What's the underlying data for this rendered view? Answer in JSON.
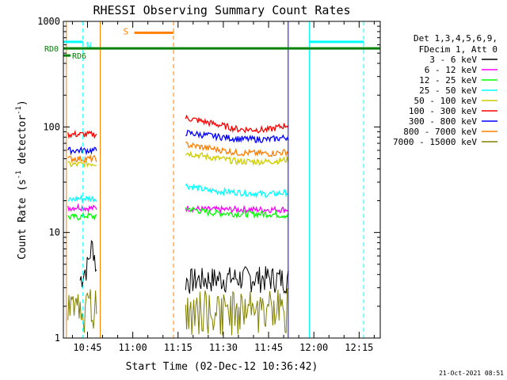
{
  "chart_data": {
    "type": "line",
    "title": "RHESSI Observing Summary Count Rates",
    "xlabel": "Start Time (02-Dec-12 10:36:42)",
    "ylabel": "Count Rate (s⁻¹ detector⁻¹)",
    "ylabel_main": "Count Rate (s",
    "ylabel_sup1": "-1",
    "ylabel_mid": " detector",
    "ylabel_sup2": "-1",
    "ylabel_end": ")",
    "yscale": "log",
    "ylim": [
      1,
      1000
    ],
    "xlim_minutes": [
      -8,
      97
    ],
    "x_tick_labels": [
      {
        "m": 0,
        "label": "10:45"
      },
      {
        "m": 15,
        "label": "11:00"
      },
      {
        "m": 30,
        "label": "11:15"
      },
      {
        "m": 45,
        "label": "11:30"
      },
      {
        "m": 60,
        "label": "11:45"
      },
      {
        "m": 75,
        "label": "12:00"
      },
      {
        "m": 90,
        "label": "12:15"
      }
    ],
    "y_tick_labels": [
      {
        "v": 1,
        "label": "1"
      },
      {
        "v": 10,
        "label": "10"
      },
      {
        "v": 100,
        "label": "100"
      },
      {
        "v": 1000,
        "label": "1000"
      }
    ],
    "legend_header": [
      "Det 1,3,4,5,6,9,",
      "FDecim 1, Att 0"
    ],
    "legend_placement": "right",
    "grid": false,
    "timestamp": "21-Oct-2021 08:51",
    "series": [
      {
        "name": "3 - 6 keV",
        "color": "#000000",
        "segments": [
          {
            "t": [
              -2.5,
              0.0,
              1.5,
              2.0,
              3.0
            ],
            "y": [
              3.5,
              4.8,
              7.5,
              7.0,
              4.0
            ]
          },
          {
            "t": [
              32.5,
              40.0,
              50.0,
              60.0,
              66.5
            ],
            "y": [
              3.5,
              3.6,
              3.7,
              3.7,
              3.6
            ]
          }
        ]
      },
      {
        "name": "6 - 12 keV",
        "color": "#ff00ff",
        "segments": [
          {
            "t": [
              -6.5,
              -3.0,
              0.0,
              3.0
            ],
            "y": [
              17,
              17.5,
              17,
              17
            ]
          },
          {
            "t": [
              32.5,
              40.0,
              50.0,
              60.0,
              66.5
            ],
            "y": [
              17,
              16.5,
              16.5,
              16.5,
              16.5
            ]
          }
        ]
      },
      {
        "name": "12 - 25 keV",
        "color": "#00ff00",
        "segments": [
          {
            "t": [
              -6.5,
              -3.0,
              0.0,
              3.0
            ],
            "y": [
              14,
              14,
              14.5,
              14
            ]
          },
          {
            "t": [
              32.5,
              40.0,
              50.0,
              60.0,
              66.5
            ],
            "y": [
              17,
              15.5,
              15,
              15,
              14.5
            ]
          }
        ]
      },
      {
        "name": "25 - 50 keV",
        "color": "#00ffff",
        "segments": [
          {
            "t": [
              -6.5,
              -3.0,
              0.0,
              3.0
            ],
            "y": [
              20,
              21,
              21,
              21
            ]
          },
          {
            "t": [
              32.5,
              40.0,
              50.0,
              60.0,
              66.5
            ],
            "y": [
              28,
              25,
              24,
              23,
              24
            ]
          }
        ]
      },
      {
        "name": "50 - 100 keV",
        "color": "#cccc00",
        "segments": [
          {
            "t": [
              -6.5,
              -3.0,
              0.0,
              3.0
            ],
            "y": [
              44,
              44,
              45,
              45
            ]
          },
          {
            "t": [
              32.5,
              40.0,
              50.0,
              60.0,
              66.5
            ],
            "y": [
              57,
              52,
              47,
              47,
              49
            ]
          }
        ]
      },
      {
        "name": "100 - 300 keV",
        "color": "#ff0000",
        "segments": [
          {
            "t": [
              -6.5,
              -3.0,
              0.0,
              3.0
            ],
            "y": [
              85,
              85,
              85,
              85
            ]
          },
          {
            "t": [
              32.5,
              40.0,
              50.0,
              60.0,
              66.5
            ],
            "y": [
              122,
              110,
              95,
              94,
              105
            ]
          }
        ]
      },
      {
        "name": "300 - 800 keV",
        "color": "#0000ff",
        "segments": [
          {
            "t": [
              -6.5,
              -3.0,
              0.0,
              3.0
            ],
            "y": [
              60,
              60,
              60,
              60
            ]
          },
          {
            "t": [
              32.5,
              40.0,
              50.0,
              60.0,
              66.5
            ],
            "y": [
              88,
              83,
              77,
              76,
              80
            ]
          }
        ]
      },
      {
        "name": "800 - 7000 keV",
        "color": "#ff8000",
        "segments": [
          {
            "t": [
              -6.5,
              -3.0,
              0.0,
              3.0
            ],
            "y": [
              50,
              50,
              50,
              50
            ]
          },
          {
            "t": [
              32.5,
              40.0,
              50.0,
              60.0,
              66.5
            ],
            "y": [
              68,
              63,
              57,
              56,
              58
            ]
          }
        ]
      },
      {
        "name": "7000 - 15000 keV",
        "color": "#808000",
        "segments": [
          {
            "t": [
              -6.5,
              -3.0,
              0.0,
              3.0
            ],
            "y": [
              2.0,
              2.4,
              2.3,
              2.3
            ]
          },
          {
            "t": [
              32.5,
              40.0,
              50.0,
              60.0,
              66.5
            ],
            "y": [
              2.3,
              2.2,
              2.1,
              2.2,
              2.3
            ]
          }
        ]
      }
    ],
    "annotations": {
      "saa": {
        "label": "S",
        "color": "#ff8000",
        "t_start": 15.5,
        "t_end": 28.5,
        "y": 780
      },
      "night": {
        "label": "N",
        "color": "#00ffff",
        "intervals": [
          [
            -8,
            -1.5
          ],
          [
            73.5,
            91.5
          ]
        ],
        "y": 640
      },
      "rd0": {
        "label": "RD0",
        "color": "#008000",
        "t_start": -8,
        "t_end": 97,
        "y": 555
      },
      "rd6": {
        "label": "RD6",
        "color": "#008000"
      },
      "v_lines": [
        {
          "t": -8.0,
          "color": "#00ffff",
          "dash": false
        },
        {
          "t": -1.5,
          "color": "#00ffff",
          "dash": true
        },
        {
          "t": -7.0,
          "color": "#ff8000",
          "dash": false
        },
        {
          "t": 4.2,
          "color": "#ff8000",
          "dash": false
        },
        {
          "t": 28.5,
          "color": "#ff8000",
          "dash": true
        },
        {
          "t": 73.5,
          "color": "#00ffff",
          "dash": false
        },
        {
          "t": 66.5,
          "color": "#0000ff",
          "dash": false
        },
        {
          "t": 91.5,
          "color": "#00ffff",
          "dash": true
        }
      ]
    }
  }
}
